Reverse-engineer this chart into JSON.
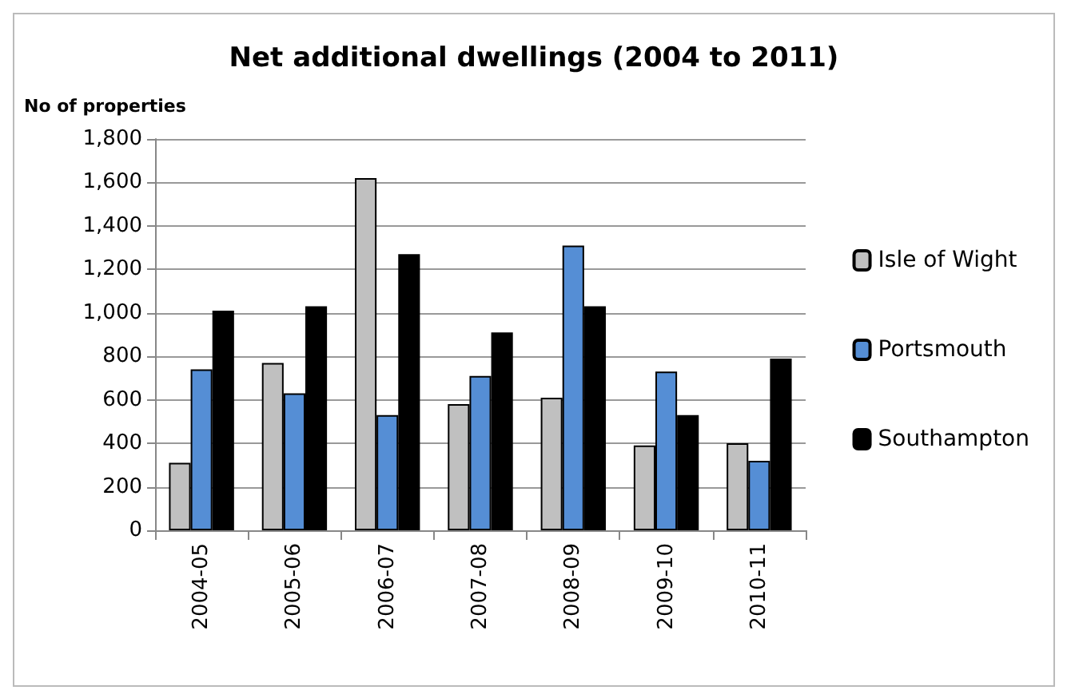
{
  "chart_data": {
    "type": "bar",
    "title": "Net additional dwellings (2004 to 2011)",
    "ylabel": "No of properties",
    "categories": [
      "2004-05",
      "2005-06",
      "2006-07",
      "2007-08",
      "2008-09",
      "2009-10",
      "2010-11"
    ],
    "series": [
      {
        "name": "Isle of Wight",
        "color": "#c0c0c0",
        "values": [
          310,
          770,
          1620,
          580,
          610,
          390,
          400
        ]
      },
      {
        "name": "Portsmouth",
        "color": "#558ed5",
        "values": [
          740,
          630,
          530,
          710,
          1310,
          730,
          320
        ]
      },
      {
        "name": "Southampton",
        "color": "#000000",
        "values": [
          1010,
          1030,
          1270,
          910,
          1030,
          530,
          790
        ]
      }
    ],
    "ylim": [
      0,
      1800
    ],
    "yticks": [
      0,
      200,
      400,
      600,
      800,
      {
        "value": 1000,
        "label": "1,000"
      },
      {
        "value": 1200,
        "label": "1,200"
      },
      {
        "value": 1400,
        "label": "1,400"
      },
      {
        "value": 1600,
        "label": "1,600"
      },
      {
        "value": 1800,
        "label": "1,800"
      }
    ],
    "grid": "y",
    "legend": "right"
  }
}
